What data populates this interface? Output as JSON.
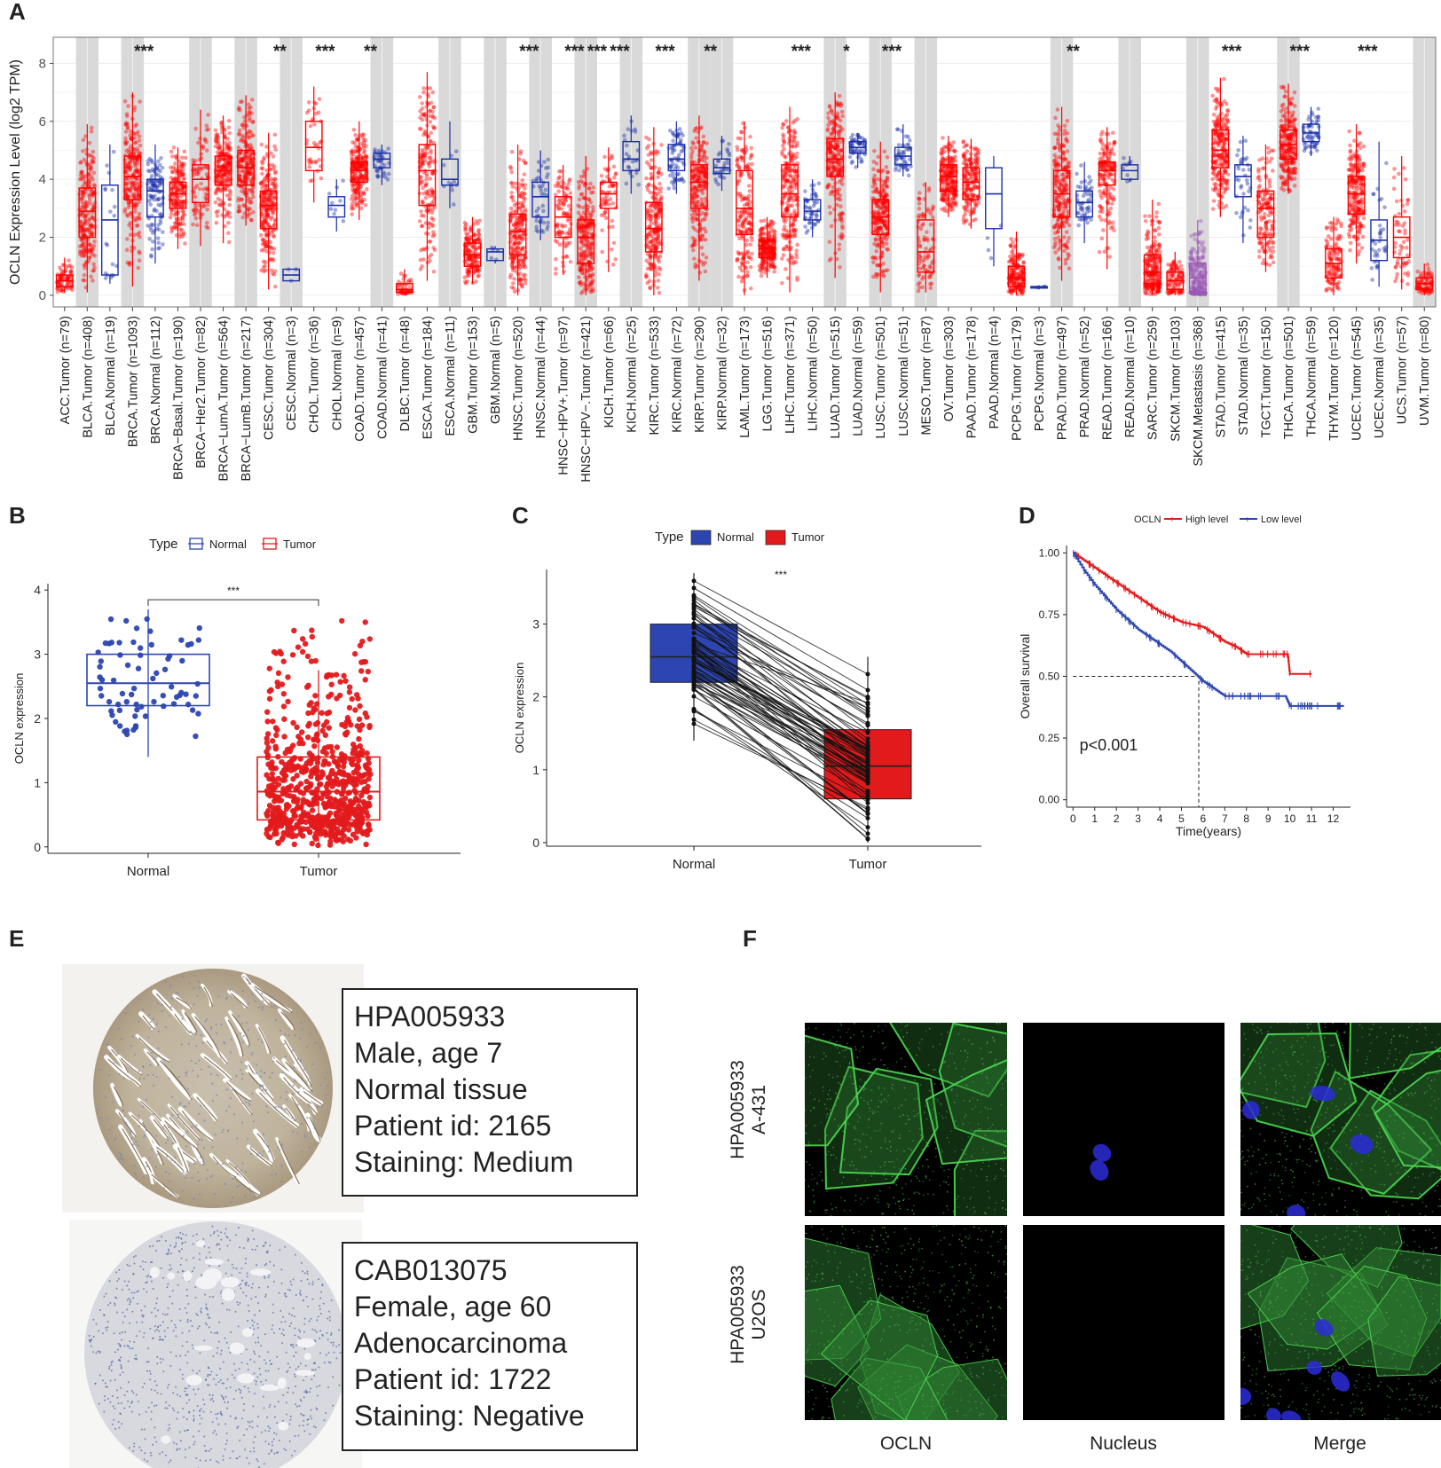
{
  "panels": {
    "a": "A",
    "b": "B",
    "c": "C",
    "d": "D",
    "e": "E",
    "f": "F"
  },
  "chart_data": [
    {
      "id": "A",
      "type": "box",
      "ylabel": "OCLN Expression Level (log2 TPM)",
      "ylim": [
        -0.4,
        8.9
      ],
      "yticks": [
        0,
        2,
        4,
        6,
        8
      ],
      "grey_groups": [
        1,
        3,
        6,
        8,
        10,
        14,
        17,
        19,
        21,
        23,
        25,
        28,
        29,
        34,
        36,
        38,
        44,
        47,
        50,
        54,
        60
      ],
      "categories": [
        {
          "label": "ACC.Tumor (n=79)",
          "kind": "tumor",
          "q": [
            0.1,
            0.3,
            0.5,
            0.7,
            1.3
          ],
          "sig": ""
        },
        {
          "label": "BLCA.Tumor (n=408)",
          "kind": "tumor",
          "q": [
            0.1,
            2.0,
            2.9,
            3.7,
            5.9
          ],
          "sig": ""
        },
        {
          "label": "BLCA.Normal (n=19)",
          "kind": "normal",
          "q": [
            0.4,
            0.7,
            2.6,
            3.8,
            5.2
          ],
          "sig": ""
        },
        {
          "label": "BRCA.Tumor (n=1093)",
          "kind": "tumor",
          "q": [
            0.3,
            3.3,
            4.1,
            4.8,
            7.0
          ],
          "sig": "***"
        },
        {
          "label": "BRCA.Normal (n=112)",
          "kind": "normal",
          "q": [
            1.1,
            2.7,
            3.6,
            4.0,
            5.2
          ],
          "sig": ""
        },
        {
          "label": "BRCA−Basal.Tumor (n=190)",
          "kind": "tumor",
          "q": [
            1.6,
            3.0,
            3.5,
            3.9,
            5.1
          ],
          "sig": ""
        },
        {
          "label": "BRCA−Her2.Tumor (n=82)",
          "kind": "tumor",
          "q": [
            1.7,
            3.2,
            4.0,
            4.5,
            6.4
          ],
          "sig": ""
        },
        {
          "label": "BRCA−LumA.Tumor (n=564)",
          "kind": "tumor",
          "q": [
            1.8,
            3.8,
            4.3,
            4.8,
            6.2
          ],
          "sig": ""
        },
        {
          "label": "BRCA−LumB.Tumor (n=217)",
          "kind": "tumor",
          "q": [
            2.4,
            3.8,
            4.4,
            5.0,
            6.9
          ],
          "sig": ""
        },
        {
          "label": "CESC.Tumor (n=304)",
          "kind": "tumor",
          "q": [
            0.2,
            2.3,
            3.1,
            3.6,
            5.6
          ],
          "sig": "**"
        },
        {
          "label": "CESC.Normal (n=3)",
          "kind": "normal",
          "q": [
            0.5,
            0.5,
            0.7,
            0.9,
            0.9
          ],
          "sig": ""
        },
        {
          "label": "CHOL.Tumor (n=36)",
          "kind": "tumor",
          "q": [
            3.2,
            4.3,
            5.1,
            6.0,
            7.2
          ],
          "sig": "***"
        },
        {
          "label": "CHOL.Normal (n=9)",
          "kind": "normal",
          "q": [
            2.2,
            2.7,
            3.1,
            3.4,
            4.0
          ],
          "sig": ""
        },
        {
          "label": "COAD.Tumor (n=457)",
          "kind": "tumor",
          "q": [
            2.6,
            3.9,
            4.3,
            4.6,
            6.0
          ],
          "sig": "**"
        },
        {
          "label": "COAD.Normal (n=41)",
          "kind": "normal",
          "q": [
            3.8,
            4.4,
            4.7,
            4.9,
            5.2
          ],
          "sig": ""
        },
        {
          "label": "DLBC.Tumor (n=48)",
          "kind": "tumor",
          "q": [
            0.0,
            0.1,
            0.2,
            0.4,
            0.9
          ],
          "sig": ""
        },
        {
          "label": "ESCA.Tumor (n=184)",
          "kind": "tumor",
          "q": [
            0.5,
            3.1,
            4.3,
            5.2,
            7.7
          ],
          "sig": ""
        },
        {
          "label": "ESCA.Normal (n=11)",
          "kind": "normal",
          "q": [
            3.0,
            3.8,
            4.0,
            4.7,
            6.0
          ],
          "sig": ""
        },
        {
          "label": "GBM.Tumor (n=153)",
          "kind": "tumor",
          "q": [
            0.4,
            1.0,
            1.4,
            1.8,
            2.7
          ],
          "sig": ""
        },
        {
          "label": "GBM.Normal (n=5)",
          "kind": "normal",
          "q": [
            1.1,
            1.2,
            1.5,
            1.6,
            1.7
          ],
          "sig": ""
        },
        {
          "label": "HNSC.Tumor (n=520)",
          "kind": "tumor",
          "q": [
            0.0,
            1.4,
            2.2,
            2.8,
            5.2
          ],
          "sig": "***"
        },
        {
          "label": "HNSC.Normal (n=44)",
          "kind": "normal",
          "q": [
            1.9,
            2.7,
            3.4,
            3.9,
            5.0
          ],
          "sig": ""
        },
        {
          "label": "HNSC−HPV+.Tumor (n=97)",
          "kind": "tumor",
          "q": [
            0.7,
            2.0,
            2.7,
            3.4,
            4.5
          ],
          "sig": "***"
        },
        {
          "label": "HNSC−HPV−.Tumor (n=421)",
          "kind": "tumor",
          "q": [
            0.0,
            1.1,
            2.0,
            2.6,
            4.8
          ],
          "sig": "***"
        },
        {
          "label": "KICH.Tumor (n=66)",
          "kind": "tumor",
          "q": [
            0.8,
            3.0,
            3.5,
            3.9,
            5.1
          ],
          "sig": "***"
        },
        {
          "label": "KICH.Normal (n=25)",
          "kind": "normal",
          "q": [
            3.5,
            4.3,
            4.7,
            5.3,
            6.2
          ],
          "sig": ""
        },
        {
          "label": "KIRC.Tumor (n=533)",
          "kind": "tumor",
          "q": [
            0.0,
            1.5,
            2.3,
            3.2,
            5.8
          ],
          "sig": "***"
        },
        {
          "label": "KIRC.Normal (n=72)",
          "kind": "normal",
          "q": [
            3.5,
            4.3,
            4.7,
            5.2,
            6.0
          ],
          "sig": ""
        },
        {
          "label": "KIRP.Tumor (n=290)",
          "kind": "tumor",
          "q": [
            0.5,
            3.0,
            3.9,
            4.5,
            6.2
          ],
          "sig": "**"
        },
        {
          "label": "KIRP.Normal (n=32)",
          "kind": "normal",
          "q": [
            3.6,
            4.2,
            4.4,
            4.7,
            5.5
          ],
          "sig": ""
        },
        {
          "label": "LAML.Tumor (n=173)",
          "kind": "tumor",
          "q": [
            0.0,
            2.1,
            3.0,
            4.3,
            6.0
          ],
          "sig": ""
        },
        {
          "label": "LGG.Tumor (n=516)",
          "kind": "tumor",
          "q": [
            0.6,
            1.3,
            1.6,
            1.9,
            2.7
          ],
          "sig": ""
        },
        {
          "label": "LIHC.Tumor (n=371)",
          "kind": "tumor",
          "q": [
            0.1,
            2.7,
            3.5,
            4.5,
            6.5
          ],
          "sig": "***"
        },
        {
          "label": "LIHC.Normal (n=50)",
          "kind": "normal",
          "q": [
            2.0,
            2.6,
            2.9,
            3.3,
            4.0
          ],
          "sig": ""
        },
        {
          "label": "LUAD.Tumor (n=515)",
          "kind": "tumor",
          "q": [
            0.6,
            4.1,
            4.7,
            5.4,
            7.0
          ],
          "sig": "*"
        },
        {
          "label": "LUAD.Normal (n=59)",
          "kind": "normal",
          "q": [
            4.4,
            4.9,
            5.1,
            5.3,
            5.6
          ],
          "sig": ""
        },
        {
          "label": "LUSC.Tumor (n=501)",
          "kind": "tumor",
          "q": [
            0.1,
            2.1,
            2.7,
            3.3,
            5.3
          ],
          "sig": "***"
        },
        {
          "label": "LUSC.Normal (n=51)",
          "kind": "normal",
          "q": [
            4.1,
            4.5,
            4.8,
            5.1,
            5.9
          ],
          "sig": ""
        },
        {
          "label": "MESO.Tumor (n=87)",
          "kind": "tumor",
          "q": [
            0.1,
            0.8,
            1.5,
            2.6,
            3.9
          ],
          "sig": ""
        },
        {
          "label": "OV.Tumor (n=303)",
          "kind": "tumor",
          "q": [
            2.7,
            3.6,
            4.1,
            4.5,
            5.5
          ],
          "sig": ""
        },
        {
          "label": "PAAD.Tumor (n=178)",
          "kind": "tumor",
          "q": [
            2.3,
            3.3,
            3.9,
            4.4,
            5.4
          ],
          "sig": ""
        },
        {
          "label": "PAAD.Normal (n=4)",
          "kind": "normal",
          "q": [
            1.0,
            2.3,
            3.5,
            4.4,
            4.8
          ],
          "sig": ""
        },
        {
          "label": "PCPG.Tumor (n=179)",
          "kind": "tumor",
          "q": [
            0.0,
            0.3,
            0.6,
            1.0,
            2.2
          ],
          "sig": ""
        },
        {
          "label": "PCPG.Normal (n=3)",
          "kind": "normal",
          "q": [
            0.2,
            0.25,
            0.3,
            0.3,
            0.35
          ],
          "sig": ""
        },
        {
          "label": "PRAD.Tumor (n=497)",
          "kind": "tumor",
          "q": [
            0.5,
            2.7,
            3.5,
            4.3,
            6.5
          ],
          "sig": "**"
        },
        {
          "label": "PRAD.Normal (n=52)",
          "kind": "normal",
          "q": [
            1.8,
            2.7,
            3.2,
            3.6,
            4.6
          ],
          "sig": ""
        },
        {
          "label": "READ.Tumor (n=166)",
          "kind": "tumor",
          "q": [
            0.9,
            3.8,
            4.3,
            4.6,
            5.8
          ],
          "sig": ""
        },
        {
          "label": "READ.Normal (n=10)",
          "kind": "normal",
          "q": [
            3.9,
            4.0,
            4.3,
            4.5,
            4.8
          ],
          "sig": ""
        },
        {
          "label": "SARC.Tumor (n=259)",
          "kind": "tumor",
          "q": [
            0.0,
            0.4,
            0.8,
            1.4,
            3.3
          ],
          "sig": ""
        },
        {
          "label": "SKCM.Tumor (n=103)",
          "kind": "tumor",
          "q": [
            0.0,
            0.2,
            0.5,
            0.8,
            1.5
          ],
          "sig": ""
        },
        {
          "label": "SKCM.Metastasis (n=368)",
          "kind": "metastasis",
          "q": [
            0.0,
            0.1,
            0.6,
            1.1,
            2.6
          ],
          "sig": ""
        },
        {
          "label": "STAD.Tumor (n=415)",
          "kind": "tumor",
          "q": [
            2.7,
            4.4,
            5.0,
            5.7,
            7.5
          ],
          "sig": "***"
        },
        {
          "label": "STAD.Normal (n=35)",
          "kind": "normal",
          "q": [
            1.8,
            3.4,
            4.1,
            4.5,
            5.5
          ],
          "sig": ""
        },
        {
          "label": "TGCT.Tumor (n=150)",
          "kind": "tumor",
          "q": [
            0.8,
            2.0,
            3.0,
            3.6,
            5.2
          ],
          "sig": ""
        },
        {
          "label": "THCA.Tumor (n=501)",
          "kind": "tumor",
          "q": [
            3.5,
            4.7,
            5.2,
            5.7,
            7.3
          ],
          "sig": "***"
        },
        {
          "label": "THCA.Normal (n=59)",
          "kind": "normal",
          "q": [
            4.8,
            5.3,
            5.6,
            5.9,
            6.5
          ],
          "sig": ""
        },
        {
          "label": "THYM.Tumor (n=120)",
          "kind": "tumor",
          "q": [
            0.0,
            0.6,
            1.1,
            1.6,
            2.7
          ],
          "sig": ""
        },
        {
          "label": "UCEC.Tumor (n=545)",
          "kind": "tumor",
          "q": [
            1.1,
            2.8,
            3.5,
            4.1,
            5.9
          ],
          "sig": "***"
        },
        {
          "label": "UCEC.Normal (n=35)",
          "kind": "normal",
          "q": [
            0.3,
            1.2,
            1.9,
            2.6,
            5.3
          ],
          "sig": ""
        },
        {
          "label": "UCS.Tumor (n=57)",
          "kind": "tumor",
          "q": [
            0.2,
            1.3,
            2.0,
            2.7,
            4.8
          ],
          "sig": ""
        },
        {
          "label": "UVM.Tumor (n=80)",
          "kind": "tumor",
          "q": [
            0.0,
            0.2,
            0.4,
            0.6,
            1.1
          ],
          "sig": ""
        }
      ]
    },
    {
      "id": "B",
      "type": "box",
      "legend_title": "Type",
      "legend": [
        "Normal",
        "Tumor"
      ],
      "ylabel": "OCLN expression",
      "yticks": [
        0,
        1,
        2,
        3,
        4
      ],
      "ylim": [
        -0.1,
        4.1
      ],
      "categories": [
        "Normal",
        "Tumor"
      ],
      "boxes": [
        {
          "name": "Normal",
          "q": [
            1.4,
            2.2,
            2.55,
            3.0,
            3.7
          ]
        },
        {
          "name": "Tumor",
          "q": [
            0.0,
            0.42,
            0.86,
            1.4,
            2.75
          ]
        }
      ],
      "significance": "***"
    },
    {
      "id": "C",
      "type": "paired",
      "legend_title": "Type",
      "legend": [
        "Normal",
        "Tumor"
      ],
      "ylabel": "OCLN expression",
      "yticks": [
        0,
        1,
        2,
        3
      ],
      "ylim": [
        -0.05,
        3.75
      ],
      "categories": [
        "Normal",
        "Tumor"
      ],
      "boxes": [
        {
          "name": "Normal",
          "q": [
            1.4,
            2.2,
            2.55,
            3.0,
            3.7
          ]
        },
        {
          "name": "Tumor",
          "q": [
            0.0,
            0.6,
            1.05,
            1.55,
            2.55
          ]
        }
      ],
      "significance": "***"
    },
    {
      "id": "D",
      "type": "line",
      "legend_title": "OCLN",
      "series": [
        {
          "name": "High level",
          "color": "#e31a1c",
          "x": [
            0,
            0.5,
            1,
            1.5,
            2,
            2.5,
            3,
            3.5,
            4,
            4.5,
            5,
            5.5,
            6,
            6.5,
            7,
            7.5,
            8,
            8.5,
            9,
            9.5,
            9.9,
            10,
            10.5,
            11
          ],
          "y": [
            1.0,
            0.97,
            0.94,
            0.91,
            0.88,
            0.85,
            0.82,
            0.79,
            0.76,
            0.74,
            0.72,
            0.71,
            0.7,
            0.67,
            0.64,
            0.62,
            0.59,
            0.59,
            0.59,
            0.59,
            0.59,
            0.51,
            0.51,
            0.51
          ]
        },
        {
          "name": "Low level",
          "color": "#2c45b0",
          "x": [
            0,
            0.5,
            1,
            1.5,
            2,
            2.5,
            3,
            3.5,
            4,
            4.5,
            5,
            5.5,
            6,
            6.5,
            7,
            7.5,
            8,
            8.5,
            9,
            9.5,
            9.8,
            10,
            10.5,
            11,
            11.5,
            12,
            12.5
          ],
          "y": [
            1.0,
            0.93,
            0.87,
            0.82,
            0.77,
            0.73,
            0.69,
            0.66,
            0.63,
            0.6,
            0.56,
            0.52,
            0.48,
            0.45,
            0.42,
            0.42,
            0.42,
            0.42,
            0.42,
            0.42,
            0.42,
            0.38,
            0.38,
            0.38,
            0.38,
            0.38,
            0.38
          ]
        }
      ],
      "xlabel": "Time(years)",
      "ylabel": "Overall survival",
      "xticks": [
        0,
        1,
        2,
        3,
        4,
        5,
        6,
        7,
        8,
        9,
        10,
        11,
        12
      ],
      "yticks": [
        "0.00",
        "0.25",
        "0.50",
        "0.75",
        "1.00"
      ],
      "xlim": [
        -0.3,
        12.8
      ],
      "ylim": [
        -0.03,
        1.03
      ],
      "median_reference": {
        "y": 0.5,
        "x": 5.8
      },
      "annotation": "p<0.001"
    }
  ],
  "ihc": [
    {
      "lines": [
        "HPA005933",
        "Male, age 7",
        "Normal tissue",
        "Patient id: 2165",
        "Staining: Medium"
      ]
    },
    {
      "lines": [
        "CAB013075",
        "Female, age 60",
        "Adenocarcinoma",
        "Patient id: 1722",
        "Staining: Negative"
      ]
    }
  ],
  "if_panel": {
    "rows": [
      [
        "HPA005933",
        "A-431"
      ],
      [
        "HPA005933",
        "U2OS"
      ]
    ],
    "cols": [
      "OCLN",
      "Nucleus",
      "Merge"
    ]
  }
}
